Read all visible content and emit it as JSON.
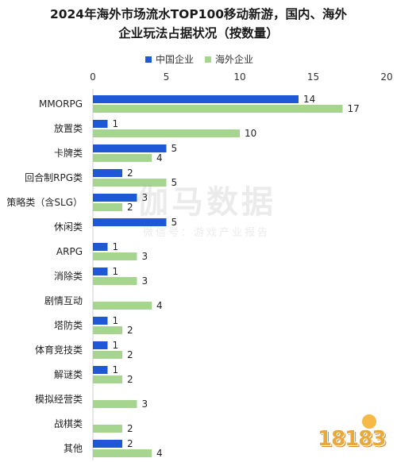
{
  "chart_data": {
    "type": "bar",
    "orientation": "horizontal",
    "title": "2024年海外市场流水TOP100移动新游，国内、海外企业玩法占据状况（按数量）",
    "title_lines": [
      "2024年海外市场流水TOP100移动新游，国内、海外",
      "企业玩法占据状况（按数量）"
    ],
    "categories": [
      "MMORPG",
      "放置类",
      "卡牌类",
      "回合制RPG类",
      "策略类（含SLG）",
      "休闲类",
      "ARPG",
      "消除类",
      "剧情互动",
      "塔防类",
      "体育竞技类",
      "解谜类",
      "模拟经营类",
      "战棋类",
      "其他"
    ],
    "series": [
      {
        "name": "中国企业",
        "color": "#1e58d6",
        "values": [
          14,
          1,
          5,
          2,
          3,
          5,
          1,
          1,
          null,
          1,
          1,
          1,
          null,
          null,
          2
        ]
      },
      {
        "name": "海外企业",
        "color": "#a6d58f",
        "values": [
          17,
          10,
          4,
          5,
          2,
          null,
          3,
          3,
          4,
          2,
          2,
          2,
          3,
          2,
          4
        ]
      }
    ],
    "x_ticks": [
      0,
      5,
      10,
      15,
      20
    ],
    "xlim": [
      0,
      20
    ],
    "legend_position": "top",
    "grid": false
  },
  "watermark": {
    "line1": "伽马数据",
    "line2": "微信号：游戏产业报告"
  },
  "logo": {
    "text": "18183"
  }
}
